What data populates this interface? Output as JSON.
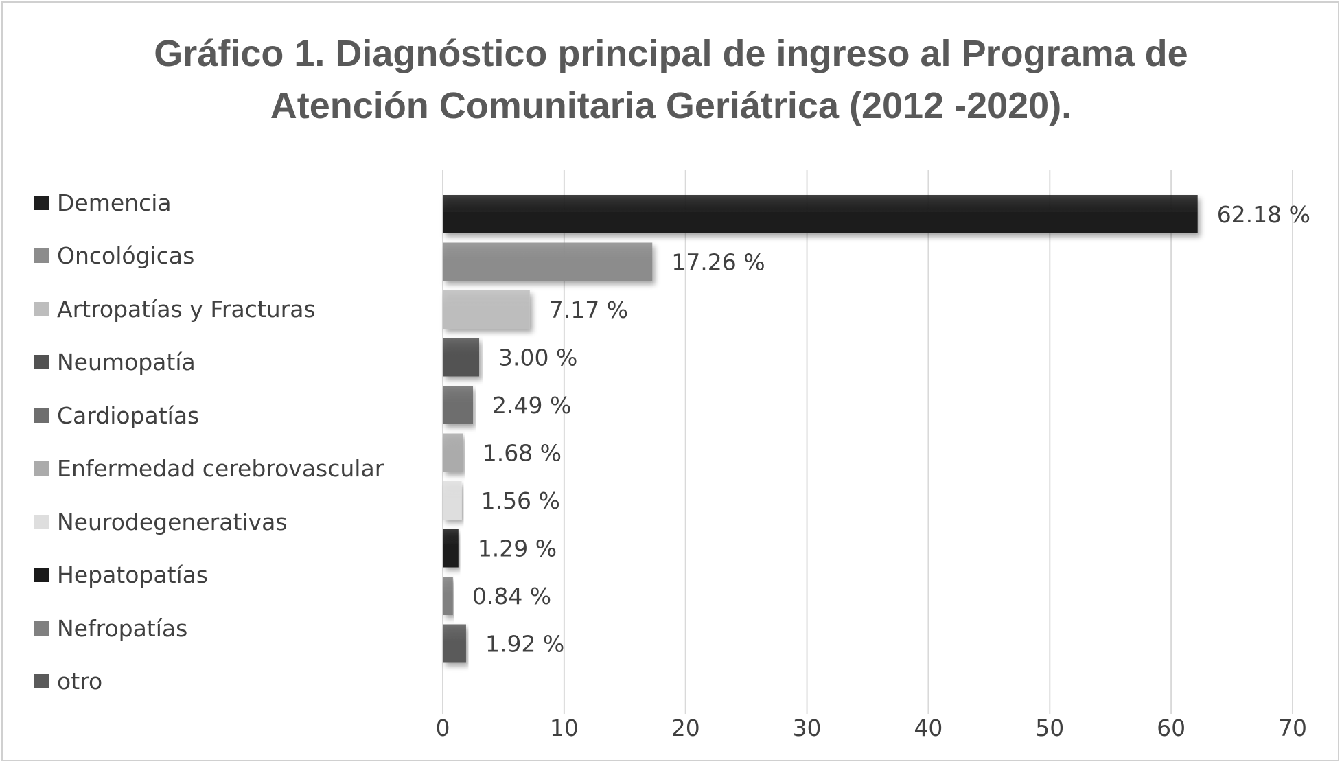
{
  "chart_data": {
    "type": "bar",
    "orientation": "horizontal",
    "title_lines": [
      "Gráfico 1. Diagnóstico principal de ingreso al Programa de",
      "Atención Comunitaria Geriátrica (2012 -2020)."
    ],
    "xlabel": "",
    "ylabel": "",
    "xlim": [
      0,
      70
    ],
    "xticks": [
      0,
      10,
      20,
      30,
      40,
      50,
      60,
      70
    ],
    "grid": true,
    "legend_position": "left",
    "categories": [
      "Demencia",
      "Oncológicas",
      "Artropatías y Fracturas",
      "Neumopatía",
      "Cardiopatías",
      "Enfermedad cerebrovascular",
      "Neurodegenerativas",
      "Hepatopatías",
      "Nefropatías",
      "otro"
    ],
    "values": [
      62.18,
      17.26,
      7.17,
      3.0,
      2.49,
      1.68,
      1.56,
      1.29,
      0.84,
      1.92
    ],
    "data_labels": [
      "62.18 %",
      "17.26 %",
      "7.17 %",
      "3.00 %",
      "2.49 %",
      "1.68 %",
      "1.56 %",
      "1.29 %",
      "0.84 %",
      "1.92 %"
    ],
    "colors": [
      "#1f1f1f",
      "#8c8c8c",
      "#bdbdbd",
      "#525252",
      "#6e6e6e",
      "#ababab",
      "#dedede",
      "#1a1a1a",
      "#808080",
      "#5a5a5a"
    ],
    "label_color": "#404040",
    "grid_color": "#d9d9d9"
  }
}
